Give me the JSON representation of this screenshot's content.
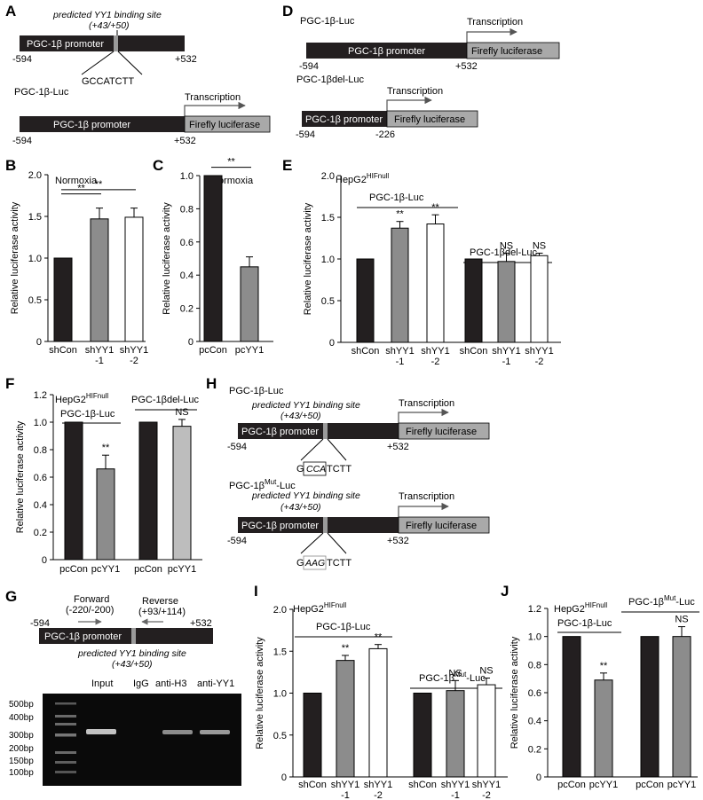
{
  "colors": {
    "black": "#231f20",
    "gray": "#8c8c8c",
    "white": "#ffffff",
    "lightgray": "#bdbdbd",
    "luc": "#a9a9a9"
  },
  "labels": {
    "promoter": "PGC-1β promoter",
    "firefly": "Firefly luciferase",
    "transcription": "Transcription",
    "site": "predicted YY1 binding site",
    "site_pos": "(+43/+50)",
    "construct": "PGC-1β-Luc",
    "del": "PGC-1βdel-Luc",
    "mut_pre": "PGC-1β",
    "mut_sup": "Mut",
    "mut_post": "-Luc",
    "m594": "-594",
    "p532": "+532",
    "m226": "-226",
    "ylabel": "Relative luciferase activity",
    "normoxia": "Normoxia",
    "hep": "HepG2",
    "hifnull": "HIFnull",
    "sig2": "**",
    "ns": "NS"
  },
  "panelA": {
    "letter": "A",
    "seq": "GCCATCTT"
  },
  "panelD": {
    "letter": "D"
  },
  "panelH": {
    "letter": "H",
    "wt_box": "CCA",
    "wt_prefix": "G",
    "wt_suffix": "TCTT",
    "mut_box": "AAG",
    "mut_prefix": "G",
    "mut_suffix": "TCTT"
  },
  "panelG": {
    "letter": "G",
    "forward": "Forward",
    "forward_pos": "(-220/-200)",
    "reverse": "Reverse",
    "reverse_pos": "(+93/+114)",
    "lanes": [
      "Input",
      "IgG",
      "anti-H3",
      "anti-YY1"
    ],
    "ladder": [
      "500bp",
      "400bp",
      "300bp",
      "200bp",
      "150bp",
      "100bp"
    ]
  },
  "chart_data": [
    {
      "id": "B",
      "type": "bar",
      "title": "Normoxia",
      "ylabel": "Relative luciferase activity",
      "ylim": [
        0,
        2.0
      ],
      "yticks": [
        "0",
        "0.5",
        "1.0",
        "1.5",
        "2.0"
      ],
      "categories": [
        "shCon",
        "shYY1 -1",
        "shYY1 -2"
      ],
      "values": [
        1.0,
        1.47,
        1.49
      ],
      "errors": [
        0,
        0.13,
        0.11
      ],
      "significance": [
        "**",
        "**"
      ]
    },
    {
      "id": "C",
      "type": "bar",
      "title": "Normoxia",
      "ylabel": "Relative luciferase activity",
      "ylim": [
        0,
        1.0
      ],
      "yticks": [
        "0",
        "0.2",
        "0.4",
        "0.6",
        "0.8",
        "1.0"
      ],
      "categories": [
        "pcCon",
        "pcYY1"
      ],
      "values": [
        1.0,
        0.45
      ],
      "errors": [
        0,
        0.06
      ],
      "significance": [
        "**"
      ]
    },
    {
      "id": "E",
      "type": "bar",
      "title": "HepG2 HIFnull",
      "ylabel": "Relative luciferase activity",
      "ylim": [
        0,
        2.0
      ],
      "yticks": [
        "0",
        "0.5",
        "1.0",
        "1.5",
        "2.0"
      ],
      "groups": [
        "PGC-1β-Luc",
        "PGC-1βdel-Luc"
      ],
      "categories": [
        "shCon",
        "shYY1 -1",
        "shYY1 -2",
        "shCon",
        "shYY1 -1",
        "shYY1 -2"
      ],
      "values": [
        1.0,
        1.37,
        1.42,
        1.0,
        0.97,
        1.04
      ],
      "errors": [
        0,
        0.08,
        0.11,
        0,
        0.1,
        0.03
      ],
      "marks": [
        "",
        "**",
        "**",
        "",
        "NS",
        "NS"
      ]
    },
    {
      "id": "F",
      "type": "bar",
      "title": "HepG2 HIFnull",
      "ylabel": "Relative luciferase activity",
      "ylim": [
        0,
        1.2
      ],
      "yticks": [
        "0",
        "0.2",
        "0.4",
        "0.6",
        "0.8",
        "1.0",
        "1.2"
      ],
      "groups": [
        "PGC-1β-Luc",
        "PGC-1βdel-Luc"
      ],
      "categories": [
        "pcCon",
        "pcYY1",
        "pcCon",
        "pcYY1"
      ],
      "values": [
        1.0,
        0.66,
        1.0,
        0.97
      ],
      "errors": [
        0,
        0.1,
        0,
        0.05
      ],
      "marks": [
        "",
        "**",
        "",
        "NS"
      ]
    },
    {
      "id": "I",
      "type": "bar",
      "title": "HepG2 HIFnull",
      "ylabel": "Relative luciferase activity",
      "ylim": [
        0,
        2.0
      ],
      "yticks": [
        "0",
        "0.5",
        "1.0",
        "1.5",
        "2.0"
      ],
      "groups": [
        "PGC-1β-Luc",
        "PGC-1βMut-Luc"
      ],
      "categories": [
        "shCon",
        "shYY1 -1",
        "shYY1 -2",
        "shCon",
        "shYY1 -1",
        "shYY1 -2"
      ],
      "values": [
        1.0,
        1.39,
        1.53,
        1.0,
        1.03,
        1.1
      ],
      "errors": [
        0,
        0.06,
        0.05,
        0,
        0.12,
        0.08
      ],
      "marks": [
        "",
        "**",
        "**",
        "",
        "NS",
        "NS"
      ]
    },
    {
      "id": "J",
      "type": "bar",
      "title": "HepG2 HIFnull",
      "ylabel": "Relative luciferase activity",
      "ylim": [
        0,
        1.2
      ],
      "yticks": [
        "0",
        "0.2",
        "0.4",
        "0.6",
        "0.8",
        "1.0",
        "1.2"
      ],
      "groups": [
        "PGC-1β-Luc",
        "PGC-1βMut-Luc"
      ],
      "categories": [
        "pcCon",
        "pcYY1",
        "pcCon",
        "pcYY1"
      ],
      "values": [
        1.0,
        0.69,
        1.0,
        1.0
      ],
      "errors": [
        0,
        0.05,
        0,
        0.07
      ],
      "marks": [
        "",
        "**",
        "",
        "NS"
      ]
    }
  ]
}
